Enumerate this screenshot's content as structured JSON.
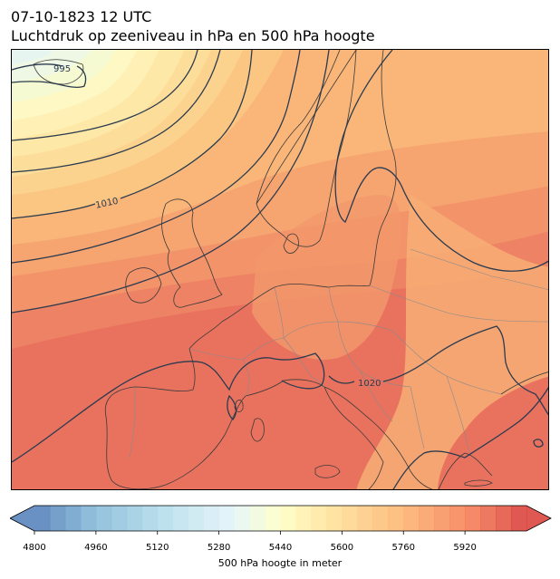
{
  "title": {
    "line1": "07-10-1823 12 UTC",
    "line2": "Luchtdruk op zeeniveau in hPa en 500 hPa hoogte"
  },
  "map": {
    "isobar_labels": [
      {
        "text": "995",
        "name": "isobar-label-995"
      },
      {
        "text": "1010",
        "name": "isobar-label-1010"
      },
      {
        "text": "1020",
        "name": "isobar-label-1020"
      }
    ],
    "colors": {
      "isobar": "#2b3b4f",
      "coast": "#3a3a3a",
      "border": "#8a8a8a"
    }
  },
  "colorbar": {
    "label": "500 hPa hoogte in meter",
    "min": 4800,
    "max": 5960,
    "step": 40,
    "ticks": [
      "4800",
      "4960",
      "5120",
      "5280",
      "5440",
      "5600",
      "5760",
      "5920"
    ],
    "extend": "both",
    "colormap": "RdYlBu_r"
  }
}
